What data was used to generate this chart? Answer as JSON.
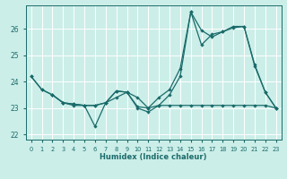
{
  "xlabel": "Humidex (Indice chaleur)",
  "xlim": [
    -0.5,
    23.5
  ],
  "ylim": [
    21.8,
    26.9
  ],
  "yticks": [
    22,
    23,
    24,
    25,
    26
  ],
  "xticks": [
    0,
    1,
    2,
    3,
    4,
    5,
    6,
    7,
    8,
    9,
    10,
    11,
    12,
    13,
    14,
    15,
    16,
    17,
    18,
    19,
    20,
    21,
    22,
    23
  ],
  "bg_color": "#cceee8",
  "line_color": "#1a6b6b",
  "grid_color": "#ffffff",
  "series1": {
    "x": [
      0,
      1,
      2,
      3,
      4,
      5,
      6,
      7,
      8,
      9,
      10,
      11,
      12,
      13,
      14,
      15,
      16,
      17,
      18,
      19,
      20,
      21,
      22,
      23
    ],
    "y": [
      24.2,
      23.7,
      23.5,
      23.2,
      23.1,
      23.1,
      22.3,
      23.2,
      23.4,
      23.6,
      23.0,
      22.85,
      23.1,
      23.5,
      24.2,
      26.65,
      25.4,
      25.8,
      25.9,
      26.1,
      26.1,
      24.65,
      23.6,
      23.0
    ]
  },
  "series2": {
    "x": [
      0,
      1,
      2,
      3,
      4,
      5,
      6,
      7,
      8,
      9,
      10,
      11,
      12,
      13,
      14,
      15,
      16,
      17,
      18,
      19,
      20,
      21,
      22,
      23
    ],
    "y": [
      24.2,
      23.7,
      23.5,
      23.2,
      23.15,
      23.1,
      23.1,
      23.2,
      23.65,
      23.6,
      23.05,
      23.0,
      23.1,
      23.1,
      23.1,
      23.1,
      23.1,
      23.1,
      23.1,
      23.1,
      23.1,
      23.1,
      23.1,
      23.0
    ]
  },
  "series3": {
    "x": [
      2,
      3,
      4,
      5,
      6,
      7,
      8,
      9,
      10,
      11,
      12,
      13,
      14,
      15,
      16,
      17,
      18,
      19,
      20,
      21,
      22,
      23
    ],
    "y": [
      23.5,
      23.2,
      23.15,
      23.1,
      23.1,
      23.2,
      23.65,
      23.6,
      23.4,
      23.0,
      23.4,
      23.7,
      24.5,
      26.65,
      25.95,
      25.7,
      25.9,
      26.05,
      26.1,
      24.6,
      23.6,
      23.0
    ]
  }
}
